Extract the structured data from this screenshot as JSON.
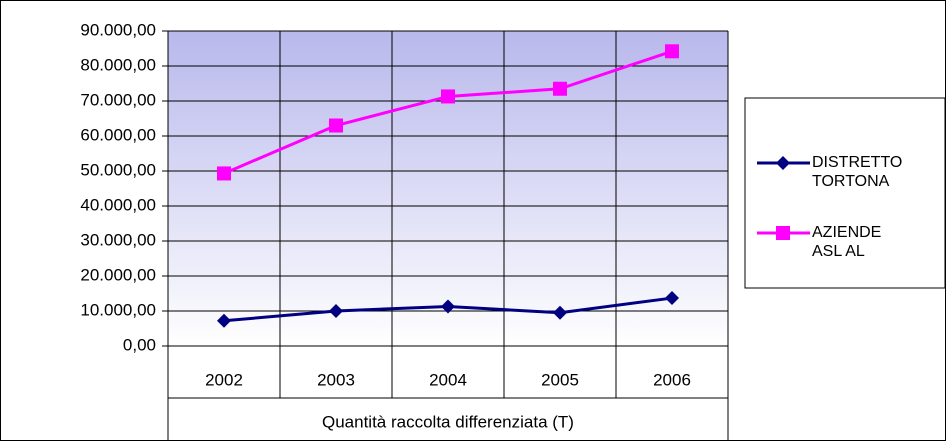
{
  "chart_data": {
    "type": "line",
    "x_label": "Quantità raccolta differenziata (T)",
    "categories": [
      "2002",
      "2003",
      "2004",
      "2005",
      "2006"
    ],
    "series": [
      {
        "name": "DISTRETTO TORTONA",
        "color": "#000080",
        "marker": "diamond",
        "values": [
          7200,
          10000,
          11300,
          9500,
          13700
        ]
      },
      {
        "name": "AZIENDE ASL AL",
        "color": "#ff00ff",
        "marker": "square",
        "values": [
          49300,
          63000,
          71300,
          73500,
          84200
        ]
      }
    ],
    "ylim": [
      0,
      90000
    ],
    "yticks": [
      {
        "value": 0,
        "label": "0,00"
      },
      {
        "value": 10000,
        "label": "10.000,00"
      },
      {
        "value": 20000,
        "label": "20.000,00"
      },
      {
        "value": 30000,
        "label": "30.000,00"
      },
      {
        "value": 40000,
        "label": "40.000,00"
      },
      {
        "value": 50000,
        "label": "50.000,00"
      },
      {
        "value": 60000,
        "label": "60.000,00"
      },
      {
        "value": 70000,
        "label": "70.000,00"
      },
      {
        "value": 80000,
        "label": "80.000,00"
      },
      {
        "value": 90000,
        "label": "90.000,00"
      }
    ],
    "grid": true,
    "legend": "right"
  }
}
